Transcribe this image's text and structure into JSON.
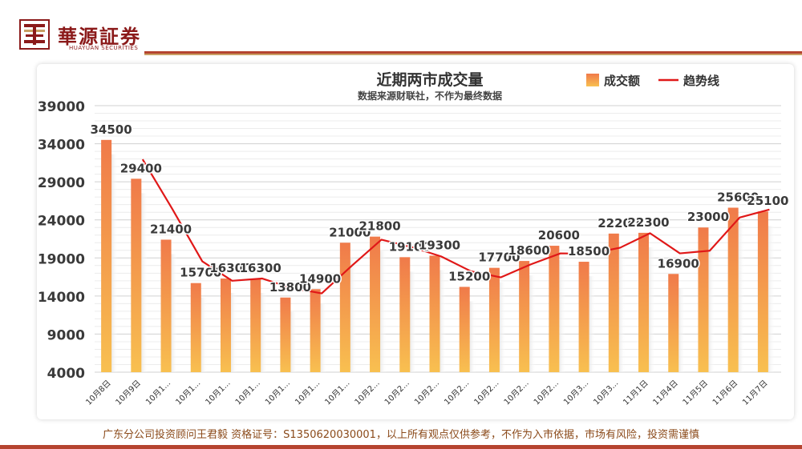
{
  "header": {
    "brand": "華源証券",
    "brand_sub": "HUAYUAN SECURITIES"
  },
  "footer": {
    "disclaimer": "广东分公司投资顾问王君毅  资格证号：S1350620030001，以上所有观点仅供参考，不作为入市依据，市场有风险，投资需谨慎"
  },
  "colors": {
    "brand_red": "#8b1a1a",
    "bar_top": "#f07a4a",
    "bar_bottom": "#f8c050",
    "trend_line": "#e01818"
  },
  "chart_data": {
    "type": "bar",
    "title": "近期两市成交量",
    "subtitle": "数据来源财联社，不作为最终数据",
    "legend": [
      "成交额",
      "趋势线"
    ],
    "legend_position": "top-right",
    "categories": [
      "10月8日",
      "10月9日",
      "10月1...",
      "10月1...",
      "10月1...",
      "10月1...",
      "10月1...",
      "10月1...",
      "10月1...",
      "10月2...",
      "10月2...",
      "10月2...",
      "10月2...",
      "10月2...",
      "10月2...",
      "10月2...",
      "10月3...",
      "10月3...",
      "11月1日",
      "11月4日",
      "11月5日",
      "11月6日",
      "11月7日"
    ],
    "series": [
      {
        "name": "成交额",
        "type": "bar",
        "values": [
          34500,
          29400,
          21400,
          15700,
          16300,
          16300,
          13800,
          14900,
          21000,
          21800,
          19100,
          19300,
          15200,
          17700,
          18600,
          20600,
          18500,
          22200,
          22300,
          16900,
          23000,
          25600,
          25100
        ]
      },
      {
        "name": "趋势线",
        "type": "line",
        "values": [
          null,
          31950,
          25400,
          18550,
          16000,
          16300,
          15050,
          14350,
          17950,
          21400,
          20450,
          19200,
          17250,
          16450,
          18150,
          19600,
          19550,
          20350,
          22250,
          19600,
          19950,
          24300,
          25350
        ]
      }
    ],
    "yticks": [
      4000,
      9000,
      14000,
      19000,
      24000,
      29000,
      34000,
      39000
    ],
    "ylim": [
      4000,
      39000
    ],
    "grid": true
  }
}
